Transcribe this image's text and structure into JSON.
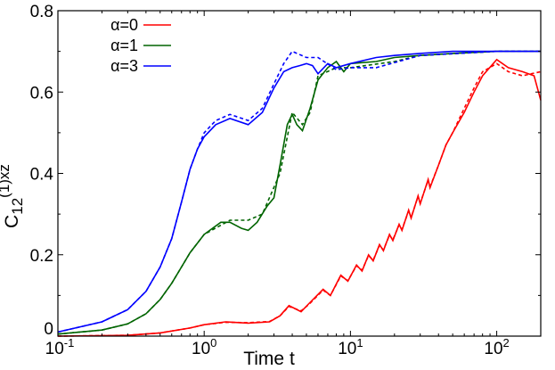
{
  "chart_data": {
    "type": "line",
    "xlabel": "Time t",
    "ylabel_main": "C",
    "ylabel_sub": "12",
    "ylabel_sup": "(1)xz",
    "xscale": "log",
    "xlim": [
      0.1,
      200
    ],
    "ylim": [
      0,
      0.8
    ],
    "xticks": [
      {
        "base": "10",
        "exp": "-1",
        "value": 0.1
      },
      {
        "base": "10",
        "exp": "0",
        "value": 1
      },
      {
        "base": "10",
        "exp": "1",
        "value": 10
      },
      {
        "base": "10",
        "exp": "2",
        "value": 100
      }
    ],
    "yticks": [
      {
        "label": "0",
        "value": 0
      },
      {
        "label": "0.2",
        "value": 0.2
      },
      {
        "label": "0.4",
        "value": 0.4
      },
      {
        "label": "0.6",
        "value": 0.6
      },
      {
        "label": "0.8",
        "value": 0.8
      }
    ],
    "legend_position": "top-left",
    "grid": false,
    "series": [
      {
        "name": "α=0",
        "color": "#ff0000",
        "style": "solid",
        "x": [
          0.1,
          0.3,
          0.5,
          0.8,
          1.0,
          1.4,
          2.0,
          2.8,
          3.3,
          3.8,
          4.6,
          5.2,
          6.5,
          7.3,
          8.6,
          9.6,
          11,
          12,
          13.3,
          14.3,
          15.8,
          16.8,
          18.5,
          19.5,
          21.5,
          22.5,
          25,
          26,
          29,
          30,
          34,
          35,
          40,
          45,
          50,
          60,
          70,
          80,
          100,
          120,
          150,
          180,
          200
        ],
        "y": [
          0,
          0.002,
          0.008,
          0.02,
          0.028,
          0.035,
          0.032,
          0.035,
          0.05,
          0.075,
          0.06,
          0.08,
          0.115,
          0.1,
          0.15,
          0.135,
          0.175,
          0.16,
          0.2,
          0.185,
          0.225,
          0.21,
          0.25,
          0.235,
          0.275,
          0.26,
          0.31,
          0.29,
          0.345,
          0.325,
          0.385,
          0.365,
          0.42,
          0.47,
          0.5,
          0.55,
          0.6,
          0.64,
          0.68,
          0.66,
          0.65,
          0.64,
          0.58
        ]
      },
      {
        "color": "#ff0000",
        "style": "dashed",
        "x": [
          0.1,
          0.3,
          0.5,
          0.8,
          1.0,
          1.4,
          2.0,
          2.8,
          3.3,
          3.8,
          4.6,
          5.2,
          6.5,
          7.3,
          8.6,
          9.6,
          11,
          12,
          13.3,
          14.3,
          15.8,
          16.8,
          18.5,
          19.5,
          21.5,
          22.5,
          25,
          26,
          29,
          30,
          34,
          35,
          40,
          45,
          50,
          60,
          70,
          80,
          100,
          120,
          150,
          200
        ],
        "y": [
          0,
          0.002,
          0.008,
          0.02,
          0.028,
          0.034,
          0.033,
          0.036,
          0.05,
          0.073,
          0.062,
          0.078,
          0.113,
          0.1,
          0.148,
          0.136,
          0.173,
          0.162,
          0.198,
          0.187,
          0.223,
          0.212,
          0.248,
          0.237,
          0.273,
          0.262,
          0.308,
          0.292,
          0.343,
          0.327,
          0.383,
          0.367,
          0.42,
          0.47,
          0.5,
          0.56,
          0.61,
          0.65,
          0.67,
          0.65,
          0.64,
          0.65
        ]
      },
      {
        "name": "α=1",
        "color": "#006400",
        "style": "solid",
        "x": [
          0.1,
          0.2,
          0.3,
          0.4,
          0.5,
          0.6,
          0.7,
          0.8,
          1.0,
          1.3,
          1.5,
          1.8,
          2.0,
          2.3,
          2.7,
          3.0,
          3.3,
          3.7,
          4.0,
          4.3,
          4.7,
          5.3,
          6.0,
          7.0,
          8.0,
          9.0,
          10,
          15,
          20,
          30,
          50,
          100,
          200
        ],
        "y": [
          0.005,
          0.015,
          0.03,
          0.055,
          0.09,
          0.13,
          0.17,
          0.205,
          0.25,
          0.28,
          0.28,
          0.265,
          0.26,
          0.28,
          0.32,
          0.34,
          0.42,
          0.52,
          0.545,
          0.52,
          0.505,
          0.56,
          0.63,
          0.66,
          0.675,
          0.65,
          0.67,
          0.675,
          0.685,
          0.69,
          0.695,
          0.7,
          0.7
        ]
      },
      {
        "color": "#006400",
        "style": "dashed",
        "x": [
          0.1,
          0.2,
          0.3,
          0.4,
          0.5,
          0.6,
          0.7,
          0.8,
          1.0,
          1.5,
          2.0,
          2.5,
          3.3,
          4.0,
          4.7,
          5.3,
          6.0,
          8.0,
          10,
          20,
          30,
          100,
          200
        ],
        "y": [
          0.005,
          0.015,
          0.03,
          0.055,
          0.09,
          0.13,
          0.17,
          0.205,
          0.25,
          0.285,
          0.285,
          0.3,
          0.4,
          0.55,
          0.52,
          0.55,
          0.64,
          0.66,
          0.66,
          0.675,
          0.69,
          0.7,
          0.7
        ]
      },
      {
        "name": "α=3",
        "color": "#0000ff",
        "style": "solid",
        "x": [
          0.1,
          0.2,
          0.3,
          0.4,
          0.5,
          0.6,
          0.7,
          0.8,
          0.9,
          1.0,
          1.2,
          1.5,
          2.0,
          2.5,
          3.0,
          3.5,
          4.0,
          4.5,
          5.0,
          5.5,
          6.0,
          7.0,
          8.0,
          10,
          15,
          20,
          30,
          50,
          100,
          200
        ],
        "y": [
          0.01,
          0.035,
          0.065,
          0.11,
          0.17,
          0.24,
          0.33,
          0.41,
          0.46,
          0.49,
          0.52,
          0.535,
          0.52,
          0.55,
          0.61,
          0.65,
          0.66,
          0.665,
          0.67,
          0.665,
          0.645,
          0.67,
          0.66,
          0.67,
          0.685,
          0.69,
          0.695,
          0.7,
          0.7,
          0.7
        ]
      },
      {
        "color": "#0000ff",
        "style": "dashed",
        "x": [
          0.1,
          0.2,
          0.3,
          0.4,
          0.5,
          0.6,
          0.7,
          0.8,
          0.9,
          1.0,
          1.2,
          1.5,
          2.0,
          2.5,
          3.0,
          3.5,
          4.0,
          5.0,
          6.0,
          8.0,
          10,
          15,
          30,
          100,
          200
        ],
        "y": [
          0.01,
          0.035,
          0.065,
          0.11,
          0.17,
          0.24,
          0.33,
          0.41,
          0.46,
          0.5,
          0.53,
          0.545,
          0.53,
          0.56,
          0.62,
          0.67,
          0.7,
          0.685,
          0.685,
          0.655,
          0.66,
          0.66,
          0.69,
          0.7,
          0.7
        ]
      }
    ]
  }
}
